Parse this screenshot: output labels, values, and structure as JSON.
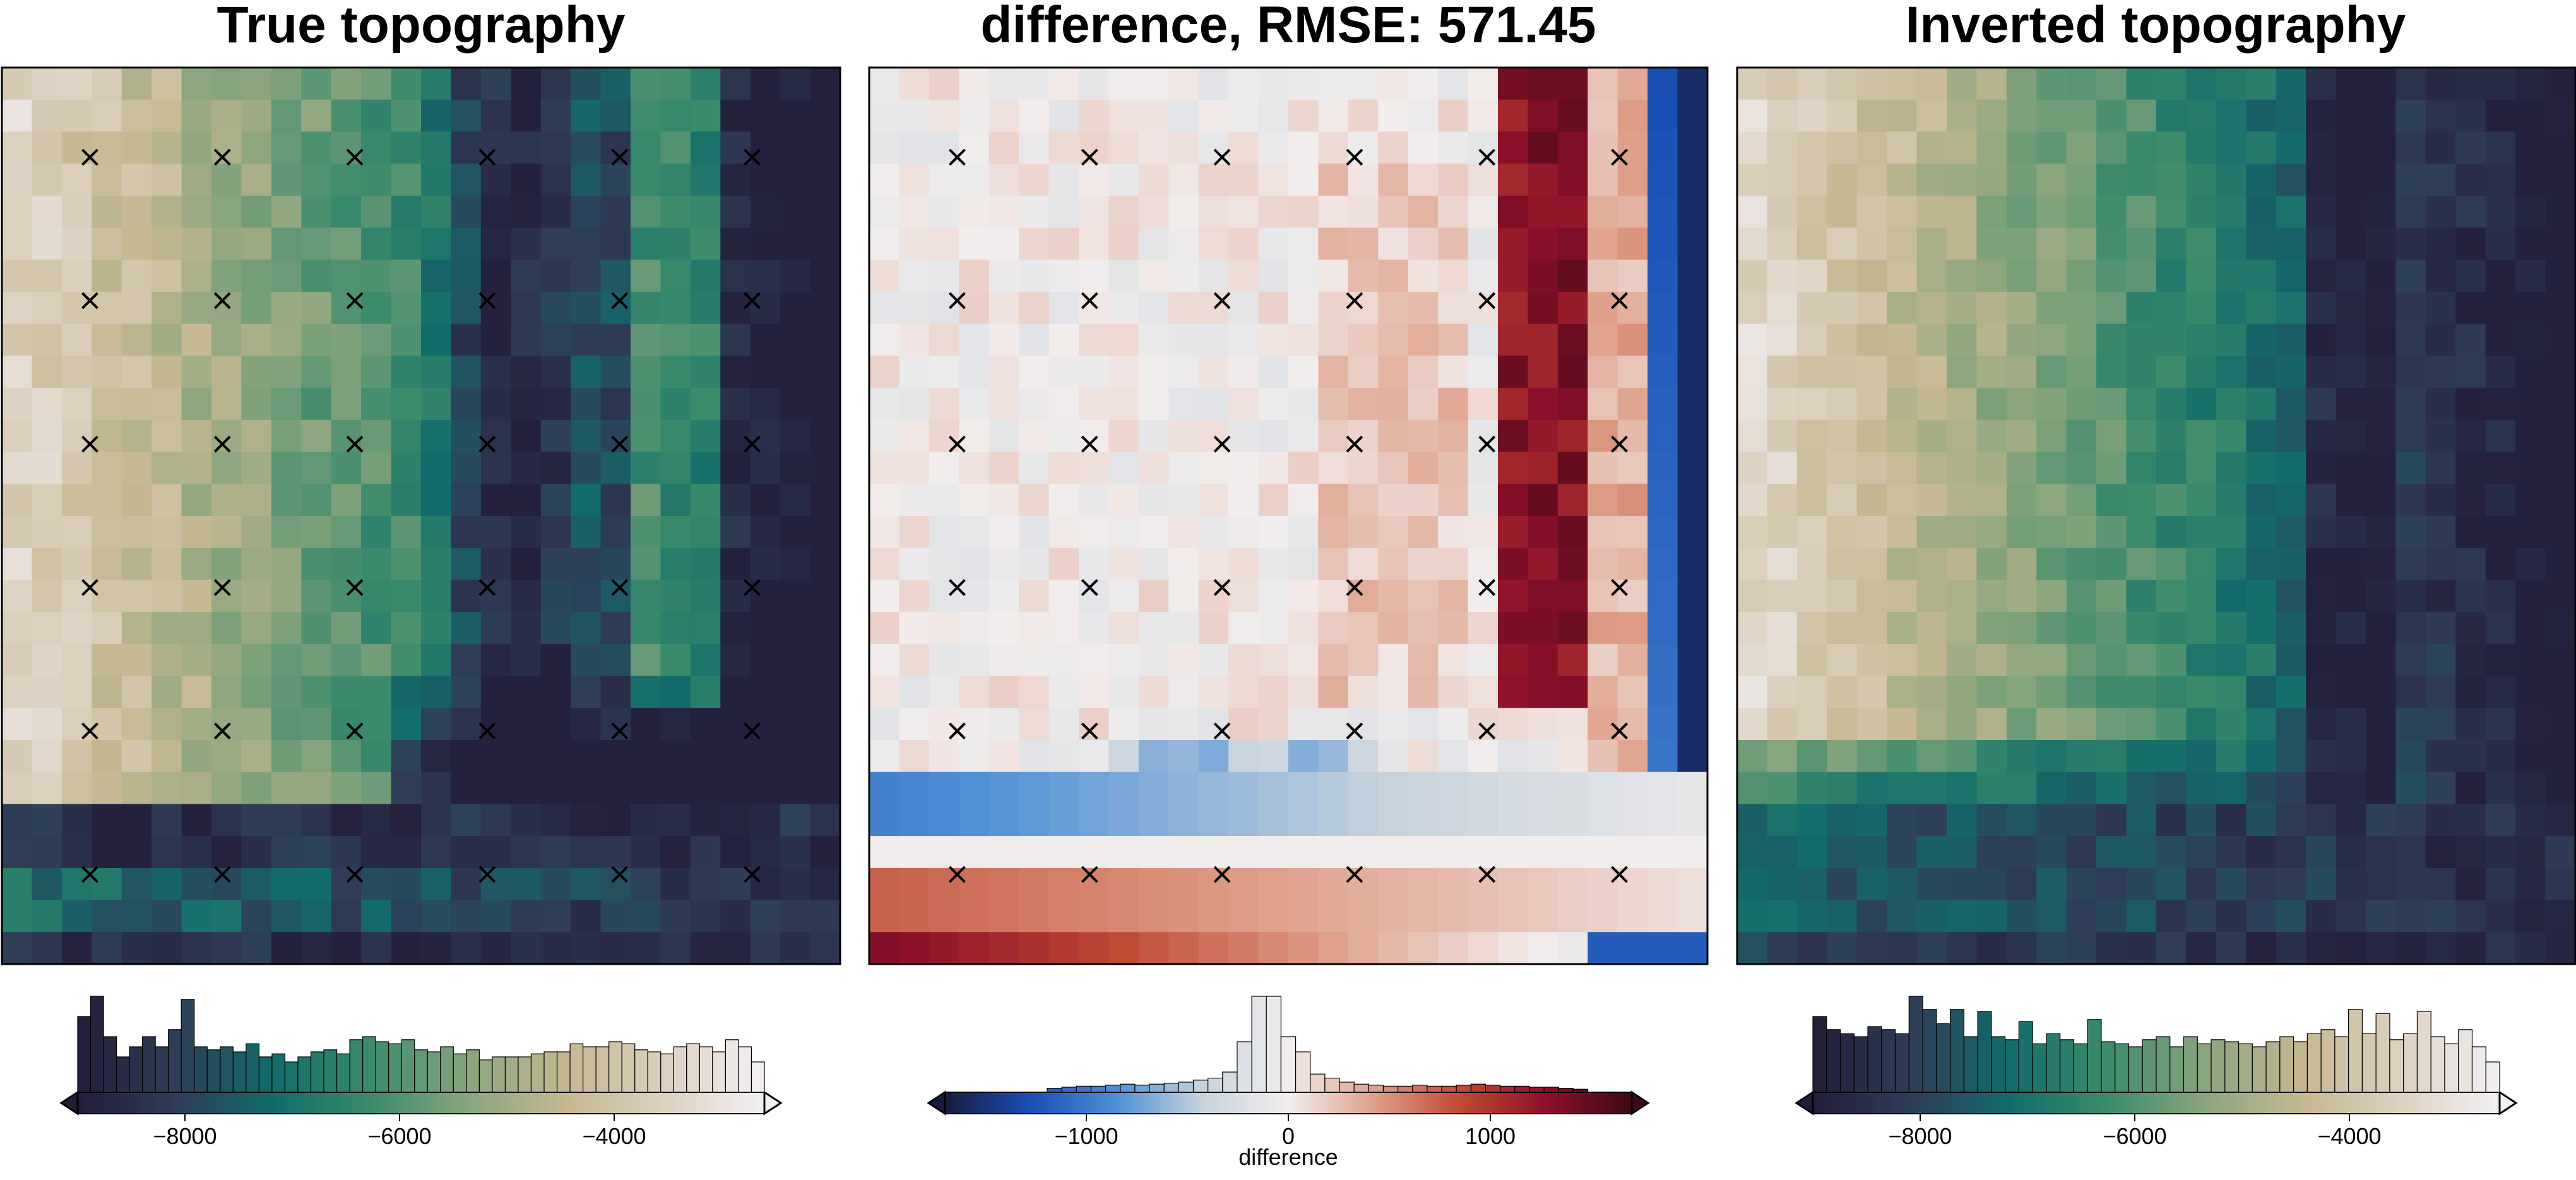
{
  "chart_data": [
    {
      "type": "heatmap",
      "title": "True topography",
      "colormap": "gmt-earth-like",
      "color_stops": [
        "#221d38",
        "#2f3d57",
        "#126c6b",
        "#3c8b6b",
        "#8aa57e",
        "#c6b892",
        "#ddd1c0",
        "#f3f0f5"
      ],
      "value_range": [
        -9000,
        -2600
      ],
      "colorbar_ticks": [
        -8000,
        -6000,
        -4000
      ],
      "colorbar_label": "",
      "histogram": [
        0.75,
        0.95,
        0.55,
        0.35,
        0.45,
        0.55,
        0.45,
        0.62,
        0.92,
        0.45,
        0.42,
        0.45,
        0.4,
        0.48,
        0.35,
        0.38,
        0.3,
        0.35,
        0.4,
        0.42,
        0.38,
        0.52,
        0.55,
        0.5,
        0.48,
        0.52,
        0.42,
        0.4,
        0.45,
        0.38,
        0.42,
        0.32,
        0.35,
        0.35,
        0.35,
        0.38,
        0.4,
        0.4,
        0.48,
        0.45,
        0.45,
        0.5,
        0.48,
        0.42,
        0.4,
        0.38,
        0.45,
        0.48,
        0.45,
        0.4,
        0.52,
        0.45,
        0.3
      ],
      "markers": {
        "symbol": "×",
        "x_fractions": [
          0.105,
          0.263,
          0.421,
          0.579,
          0.737,
          0.895
        ],
        "y_fractions": [
          0.1,
          0.26,
          0.42,
          0.58,
          0.74,
          0.9
        ]
      }
    },
    {
      "type": "heatmap",
      "title": "difference, RMSE: 571.45",
      "colormap": "balance-diverging",
      "color_stops": [
        "#171b3f",
        "#1a4fb5",
        "#4f8fd6",
        "#c7d3dc",
        "#f2eded",
        "#dfa08a",
        "#c04a34",
        "#8c1029",
        "#3d0a16"
      ],
      "value_range": [
        -1700,
        1700
      ],
      "colorbar_ticks": [
        -1000,
        0,
        1000
      ],
      "colorbar_label": "difference",
      "histogram": [
        0.0,
        0.0,
        0.0,
        0.0,
        0.0,
        0.0,
        0.0,
        0.04,
        0.05,
        0.06,
        0.06,
        0.07,
        0.08,
        0.07,
        0.08,
        0.09,
        0.1,
        0.12,
        0.14,
        0.2,
        0.5,
        0.95,
        0.95,
        0.55,
        0.4,
        0.18,
        0.14,
        0.1,
        0.08,
        0.07,
        0.06,
        0.06,
        0.07,
        0.06,
        0.06,
        0.07,
        0.08,
        0.07,
        0.06,
        0.06,
        0.05,
        0.05,
        0.04,
        0.03,
        0.0,
        0.0,
        0.0
      ],
      "markers": {
        "symbol": "×",
        "x_fractions": [
          0.105,
          0.263,
          0.421,
          0.579,
          0.737,
          0.895
        ],
        "y_fractions": [
          0.1,
          0.26,
          0.42,
          0.58,
          0.74,
          0.9
        ]
      }
    },
    {
      "type": "heatmap",
      "title": "Inverted topography",
      "colormap": "gmt-earth-like",
      "color_stops": [
        "#221d38",
        "#2f3d57",
        "#126c6b",
        "#3c8b6b",
        "#8aa57e",
        "#c6b892",
        "#ddd1c0",
        "#f3f0f5"
      ],
      "value_range": [
        -9000,
        -2600
      ],
      "colorbar_ticks": [
        -8000,
        -6000,
        -4000
      ],
      "colorbar_label": "",
      "histogram": [
        0.75,
        0.62,
        0.58,
        0.55,
        0.65,
        0.62,
        0.58,
        0.95,
        0.82,
        0.68,
        0.82,
        0.55,
        0.8,
        0.55,
        0.52,
        0.7,
        0.48,
        0.58,
        0.52,
        0.48,
        0.72,
        0.5,
        0.48,
        0.45,
        0.52,
        0.55,
        0.45,
        0.55,
        0.48,
        0.52,
        0.5,
        0.48,
        0.45,
        0.5,
        0.55,
        0.5,
        0.58,
        0.62,
        0.55,
        0.82,
        0.58,
        0.78,
        0.52,
        0.58,
        0.8,
        0.55,
        0.48,
        0.62,
        0.45,
        0.3
      ]
    }
  ]
}
